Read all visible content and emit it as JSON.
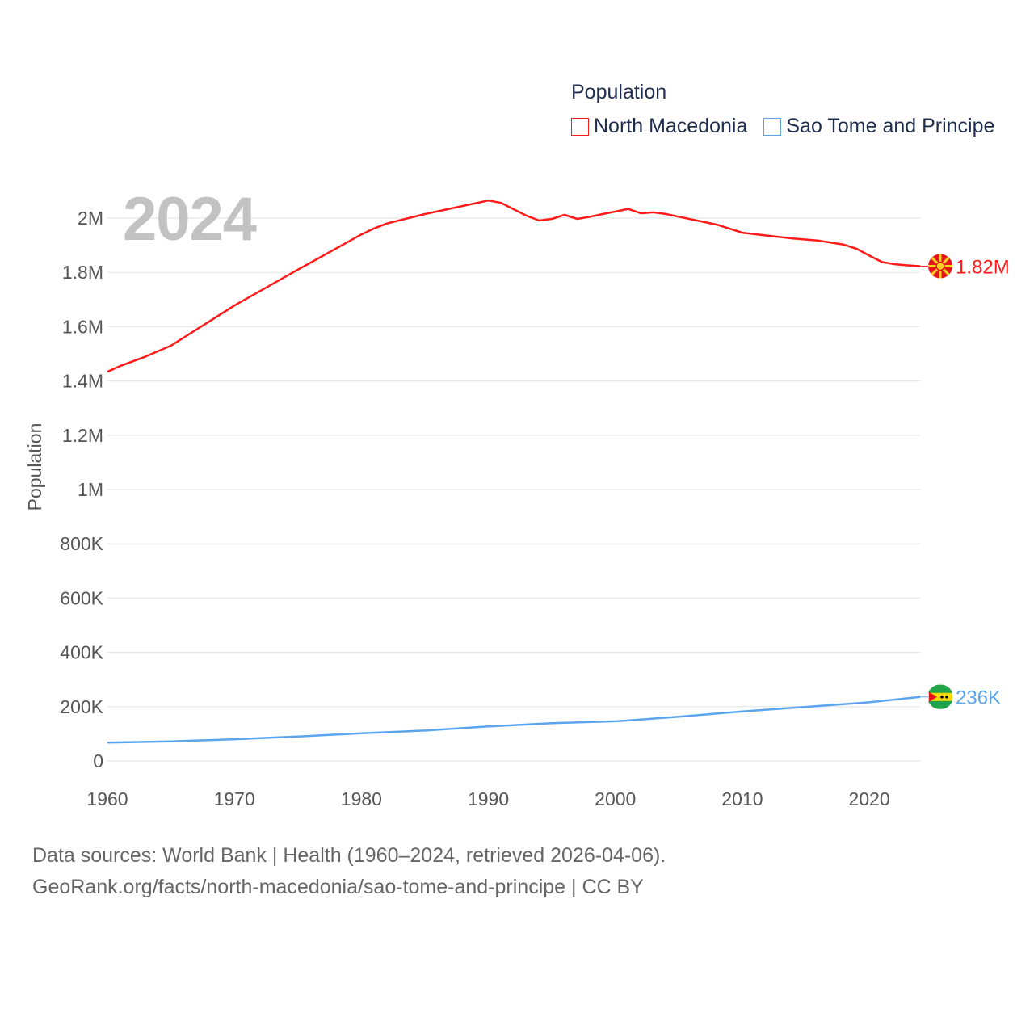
{
  "chart_data": {
    "type": "line",
    "ylabel": "Population",
    "legend_title": "Population",
    "legend_placement": "top-right",
    "year_label": "2024",
    "ylim": [
      0,
      2000000
    ],
    "xlim": [
      1960,
      2024
    ],
    "y_ticks": [
      {
        "value": 0,
        "label": "0"
      },
      {
        "value": 200000,
        "label": "200K"
      },
      {
        "value": 400000,
        "label": "400K"
      },
      {
        "value": 600000,
        "label": "600K"
      },
      {
        "value": 800000,
        "label": "800K"
      },
      {
        "value": 1000000,
        "label": "1M"
      },
      {
        "value": 1200000,
        "label": "1.2M"
      },
      {
        "value": 1400000,
        "label": "1.4M"
      },
      {
        "value": 1600000,
        "label": "1.6M"
      },
      {
        "value": 1800000,
        "label": "1.8M"
      },
      {
        "value": 2000000,
        "label": "2M"
      }
    ],
    "x_ticks": [
      {
        "value": 1960,
        "label": "1960"
      },
      {
        "value": 1970,
        "label": "1970"
      },
      {
        "value": 1980,
        "label": "1980"
      },
      {
        "value": 1990,
        "label": "1990"
      },
      {
        "value": 2000,
        "label": "2000"
      },
      {
        "value": 2010,
        "label": "2010"
      },
      {
        "value": 2020,
        "label": "2020"
      }
    ],
    "grid": true,
    "series": [
      {
        "name": "North Macedonia",
        "color": "#ff1a1a",
        "end_label": "1.82M",
        "flag": "north-macedonia",
        "points": [
          [
            1960,
            1434000
          ],
          [
            1961,
            1455000
          ],
          [
            1963,
            1490000
          ],
          [
            1965,
            1530000
          ],
          [
            1970,
            1678000
          ],
          [
            1975,
            1810000
          ],
          [
            1980,
            1940000
          ],
          [
            1981,
            1962000
          ],
          [
            1982,
            1980000
          ],
          [
            1985,
            2015000
          ],
          [
            1990,
            2065000
          ],
          [
            1991,
            2056000
          ],
          [
            1993,
            2009000
          ],
          [
            1994,
            1991000
          ],
          [
            1995,
            1997000
          ],
          [
            1996,
            2012000
          ],
          [
            1997,
            1997000
          ],
          [
            1998,
            2005000
          ],
          [
            1999,
            2015000
          ],
          [
            2000,
            2024000
          ],
          [
            2001,
            2034000
          ],
          [
            2002,
            2018000
          ],
          [
            2003,
            2021000
          ],
          [
            2004,
            2015000
          ],
          [
            2005,
            2005000
          ],
          [
            2008,
            1976000
          ],
          [
            2010,
            1946000
          ],
          [
            2012,
            1935000
          ],
          [
            2014,
            1925000
          ],
          [
            2016,
            1917000
          ],
          [
            2018,
            1902000
          ],
          [
            2019,
            1887000
          ],
          [
            2020,
            1862000
          ],
          [
            2021,
            1838000
          ],
          [
            2022,
            1830000
          ],
          [
            2023,
            1826000
          ],
          [
            2024,
            1823000
          ]
        ]
      },
      {
        "name": "Sao Tome and Principe",
        "color": "#5aa5ee",
        "end_label": "236K",
        "flag": "sao-tome-and-principe",
        "points": [
          [
            1960,
            68000
          ],
          [
            1965,
            72000
          ],
          [
            1970,
            80000
          ],
          [
            1975,
            90000
          ],
          [
            1980,
            102000
          ],
          [
            1985,
            112000
          ],
          [
            1990,
            127000
          ],
          [
            1995,
            139000
          ],
          [
            2000,
            146000
          ],
          [
            2001,
            149000
          ],
          [
            2005,
            163000
          ],
          [
            2010,
            182000
          ],
          [
            2015,
            199000
          ],
          [
            2020,
            216000
          ],
          [
            2024,
            236000
          ]
        ]
      }
    ]
  },
  "footer": {
    "line1": "Data sources: World Bank | Health (1960–2024, retrieved 2026-04-06).",
    "line2": "GeoRank.org/facts/north-macedonia/sao-tome-and-principe | CC BY"
  }
}
